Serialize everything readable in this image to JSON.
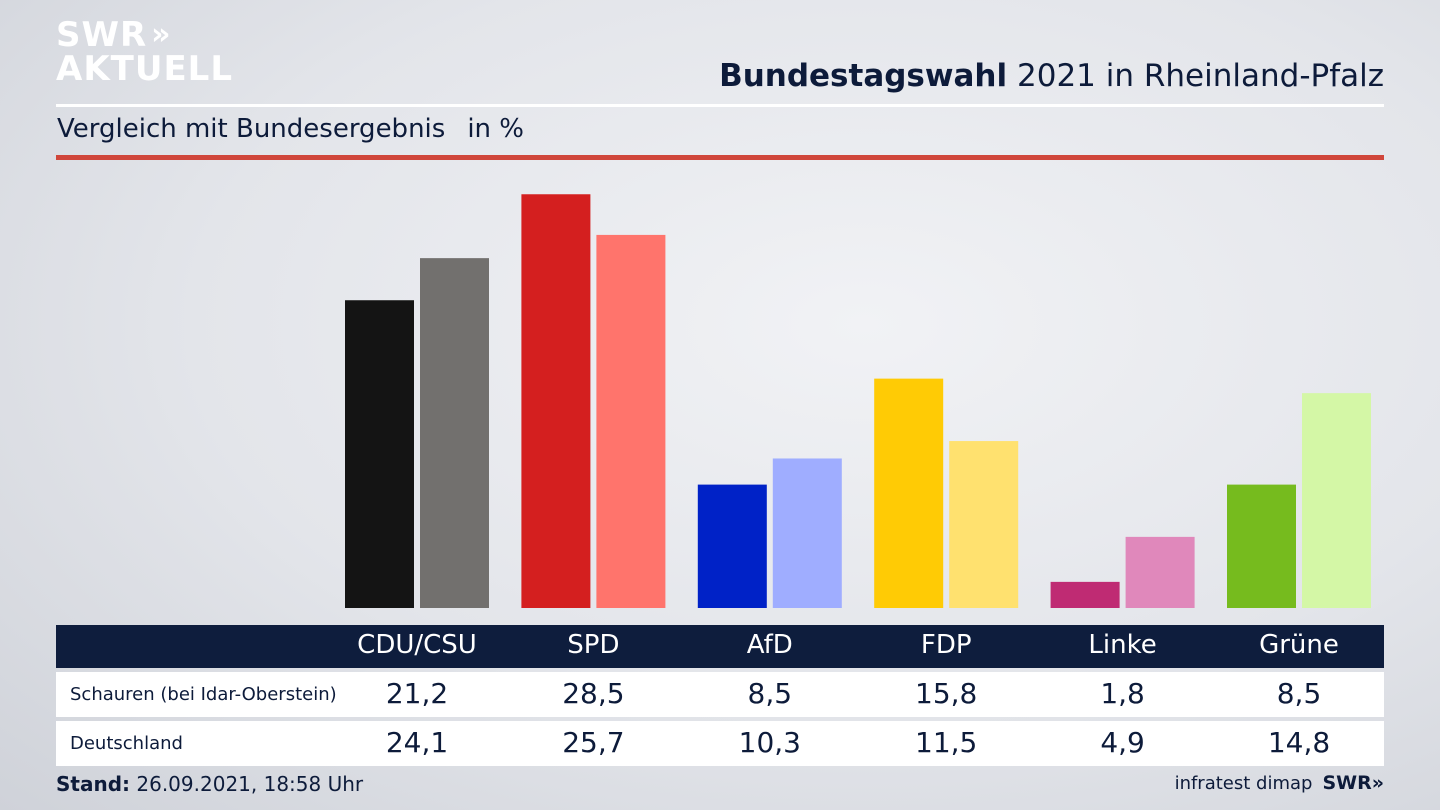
{
  "logo": {
    "line1": "SWR",
    "line2": "AKTUELL",
    "chevrons": "»"
  },
  "title": {
    "bold": "Bundestagswahl",
    "rest": "2021 in Rheinland-Pfalz"
  },
  "subtitle": {
    "text": "Vergleich mit Bundesergebnis",
    "unit": "in %"
  },
  "chart_data": {
    "type": "bar",
    "categories": [
      "CDU/CSU",
      "SPD",
      "AfD",
      "FDP",
      "Linke",
      "Grüne"
    ],
    "series": [
      {
        "name": "Schauren (bei Idar-Oberstein)",
        "values": [
          21.2,
          28.5,
          8.5,
          15.8,
          1.8,
          8.5
        ],
        "colors": [
          "#141414",
          "#d41f1f",
          "#0022c7",
          "#ffcb05",
          "#bf2b73",
          "#76bb1e"
        ]
      },
      {
        "name": "Deutschland",
        "values": [
          24.1,
          25.7,
          10.3,
          11.5,
          4.9,
          14.8
        ],
        "colors": [
          "#72706e",
          "#ff746c",
          "#9fadff",
          "#ffe16f",
          "#e088bb",
          "#d4f7a6"
        ]
      }
    ],
    "value_labels": [
      [
        "21,2",
        "28,5",
        "8,5",
        "15,8",
        "1,8",
        "8,5"
      ],
      [
        "24,1",
        "25,7",
        "10,3",
        "11,5",
        "4,9",
        "14,8"
      ]
    ],
    "ylim": [
      0,
      29
    ],
    "grid": false,
    "legend": "table-below"
  },
  "footer": {
    "stand_label": "Stand:",
    "stand_value": "26.09.2021, 18:58 Uhr",
    "source": "infratest dimap",
    "brand": "SWR»"
  }
}
